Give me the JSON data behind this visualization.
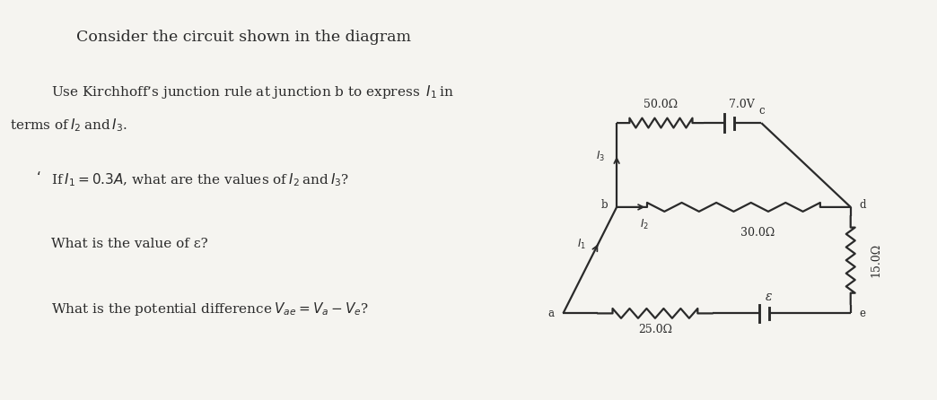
{
  "title": "Consider the circuit shown in the diagram",
  "q1_prefix": "Use Kirchhoff’s junction rule at junction b to express ",
  "q1_italic": "I",
  "q1_sub": "1",
  "q1_suffix": " in",
  "q1_line2": "terms of ",
  "q1_line2_italic": "I",
  "q1_line2_sub2": "2",
  "q1_line2_and": " and ",
  "q1_line2_I3": "I",
  "q1_line2_sub3": "3",
  "q1_line2_end": ".",
  "q2_prefix": "If ",
  "q2_italic1": "I",
  "q2_sub1": "1",
  "q2_mid": " = 0.3",
  "q2_italic2": "A",
  "q2_suffix": ", what are the values of ",
  "q2_I2": "I",
  "q2_sub2": "2",
  "q2_and": " and ",
  "q2_I3b": "I",
  "q2_sub3": "3",
  "q2_end": "?",
  "q3": "What is the value of ε?",
  "q4_pre": "What is the potential difference ",
  "q4_Vae": "V",
  "q4_sub_ae": "ae",
  "q4_eq": " = ",
  "q4_Va": "V",
  "q4_sub_a": "a",
  "q4_minus": " − ",
  "q4_Ve": "V",
  "q4_sub_e": "e",
  "q4_end": "?",
  "bg_color": "#f5f4f0",
  "text_color": "#2a2a2a",
  "circuit_color": "#2a2a2a",
  "r_top": "50.0Ω",
  "v_top": "7.0V",
  "r_mid": "30.0Ω",
  "r_bot": "25.0Ω",
  "r_right": "15.0Ω",
  "emf_label": "ε",
  "node_a": "a",
  "node_b": "b",
  "node_c": "c",
  "node_d": "d",
  "node_e": "e",
  "I1_label": "I",
  "I1_sub": "1",
  "I2_label": "I",
  "I2_sub": "2",
  "I3_label": "I",
  "I3_sub": "3"
}
